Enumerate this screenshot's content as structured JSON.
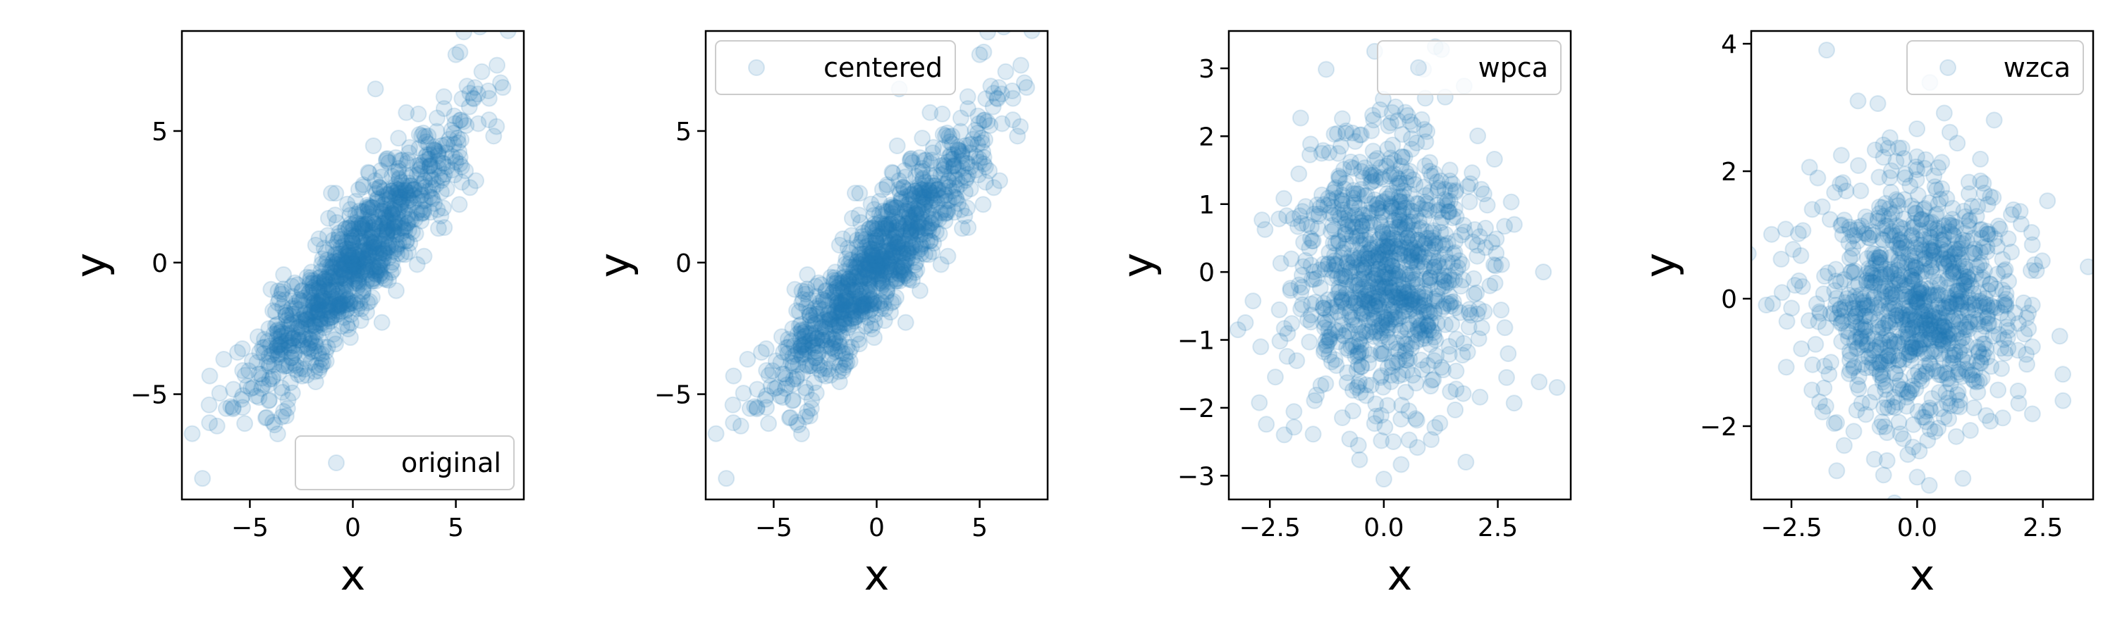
{
  "colors": {
    "point": "#1f77b4",
    "frame": "#000000",
    "legend_border": "#cccccc"
  },
  "chart_data": [
    {
      "type": "scatter",
      "legend": "original",
      "legend_position": "lower right",
      "xlabel": "x",
      "ylabel": "y",
      "xlim": [
        -8.3,
        8.3
      ],
      "ylim": [
        -9.0,
        8.8
      ],
      "xticks": [
        -5,
        0,
        5
      ],
      "xtick_labels": [
        "−5",
        "0",
        "5"
      ],
      "yticks": [
        -5,
        0,
        5
      ],
      "ytick_labels": [
        "−5",
        "0",
        "5"
      ],
      "marker_alpha": 0.15,
      "n_points": 1000,
      "distribution": {
        "kind": "gaussian",
        "mean": [
          0.0,
          0.0
        ],
        "std": [
          2.6,
          2.6
        ],
        "corr": 0.9,
        "seed": 11
      },
      "highlighted_points": [
        [
          5.0,
          7.9
        ],
        [
          5.2,
          8.0
        ],
        [
          7.0,
          7.5
        ],
        [
          1.1,
          6.6
        ],
        [
          -7.8,
          -6.5
        ],
        [
          -7.3,
          -8.2
        ]
      ]
    },
    {
      "type": "scatter",
      "legend": "centered",
      "legend_position": "upper left",
      "xlabel": "x",
      "ylabel": "y",
      "xlim": [
        -8.3,
        8.3
      ],
      "ylim": [
        -9.0,
        8.8
      ],
      "xticks": [
        -5,
        0,
        5
      ],
      "xtick_labels": [
        "−5",
        "0",
        "5"
      ],
      "yticks": [
        -5,
        0,
        5
      ],
      "ytick_labels": [
        "−5",
        "0",
        "5"
      ],
      "marker_alpha": 0.15,
      "n_points": 1000,
      "distribution": {
        "kind": "gaussian",
        "mean": [
          0.0,
          0.0
        ],
        "std": [
          2.6,
          2.6
        ],
        "corr": 0.9,
        "seed": 11
      },
      "highlighted_points": [
        [
          5.0,
          7.9
        ],
        [
          5.2,
          8.0
        ],
        [
          7.0,
          7.5
        ],
        [
          1.1,
          6.6
        ],
        [
          -7.8,
          -6.5
        ],
        [
          -7.3,
          -8.2
        ]
      ]
    },
    {
      "type": "scatter",
      "legend": "wpca",
      "legend_position": "upper right",
      "xlabel": "x",
      "ylabel": "y",
      "xlim": [
        -3.4,
        4.1
      ],
      "ylim": [
        -3.35,
        3.55
      ],
      "xticks": [
        -2.5,
        0.0,
        2.5
      ],
      "xtick_labels": [
        "−2.5",
        "0.0",
        "2.5"
      ],
      "yticks": [
        -3,
        -2,
        -1,
        0,
        1,
        2,
        3
      ],
      "ytick_labels": [
        "−3",
        "−2",
        "−1",
        "0",
        "1",
        "2",
        "3"
      ],
      "marker_alpha": 0.15,
      "n_points": 1000,
      "distribution": {
        "kind": "gaussian",
        "mean": [
          0.0,
          0.0
        ],
        "std": [
          1.0,
          1.0
        ],
        "corr": 0.0,
        "seed": 23
      },
      "highlighted_points": [
        [
          -0.2,
          3.25
        ],
        [
          3.8,
          -1.7
        ],
        [
          -3.2,
          -0.85
        ],
        [
          0.0,
          -3.05
        ],
        [
          1.8,
          -2.8
        ],
        [
          3.5,
          0.0
        ]
      ]
    },
    {
      "type": "scatter",
      "legend": "wzca",
      "legend_position": "upper right",
      "xlabel": "x",
      "ylabel": "y",
      "xlim": [
        -3.3,
        3.5
      ],
      "ylim": [
        -3.15,
        4.2
      ],
      "xticks": [
        -2.5,
        0.0,
        2.5
      ],
      "xtick_labels": [
        "−2.5",
        "0.0",
        "2.5"
      ],
      "yticks": [
        -2,
        0,
        2,
        4
      ],
      "ytick_labels": [
        "−2",
        "0",
        "2",
        "4"
      ],
      "marker_alpha": 0.15,
      "n_points": 1000,
      "distribution": {
        "kind": "gaussian",
        "mean": [
          0.0,
          0.0
        ],
        "std": [
          1.0,
          1.0
        ],
        "corr": 0.0,
        "seed": 37
      },
      "highlighted_points": [
        [
          -1.8,
          3.9
        ],
        [
          -3.0,
          -0.1
        ],
        [
          3.4,
          0.5
        ],
        [
          0.0,
          -2.8
        ],
        [
          -1.6,
          -2.7
        ],
        [
          2.9,
          -1.6
        ]
      ]
    }
  ]
}
